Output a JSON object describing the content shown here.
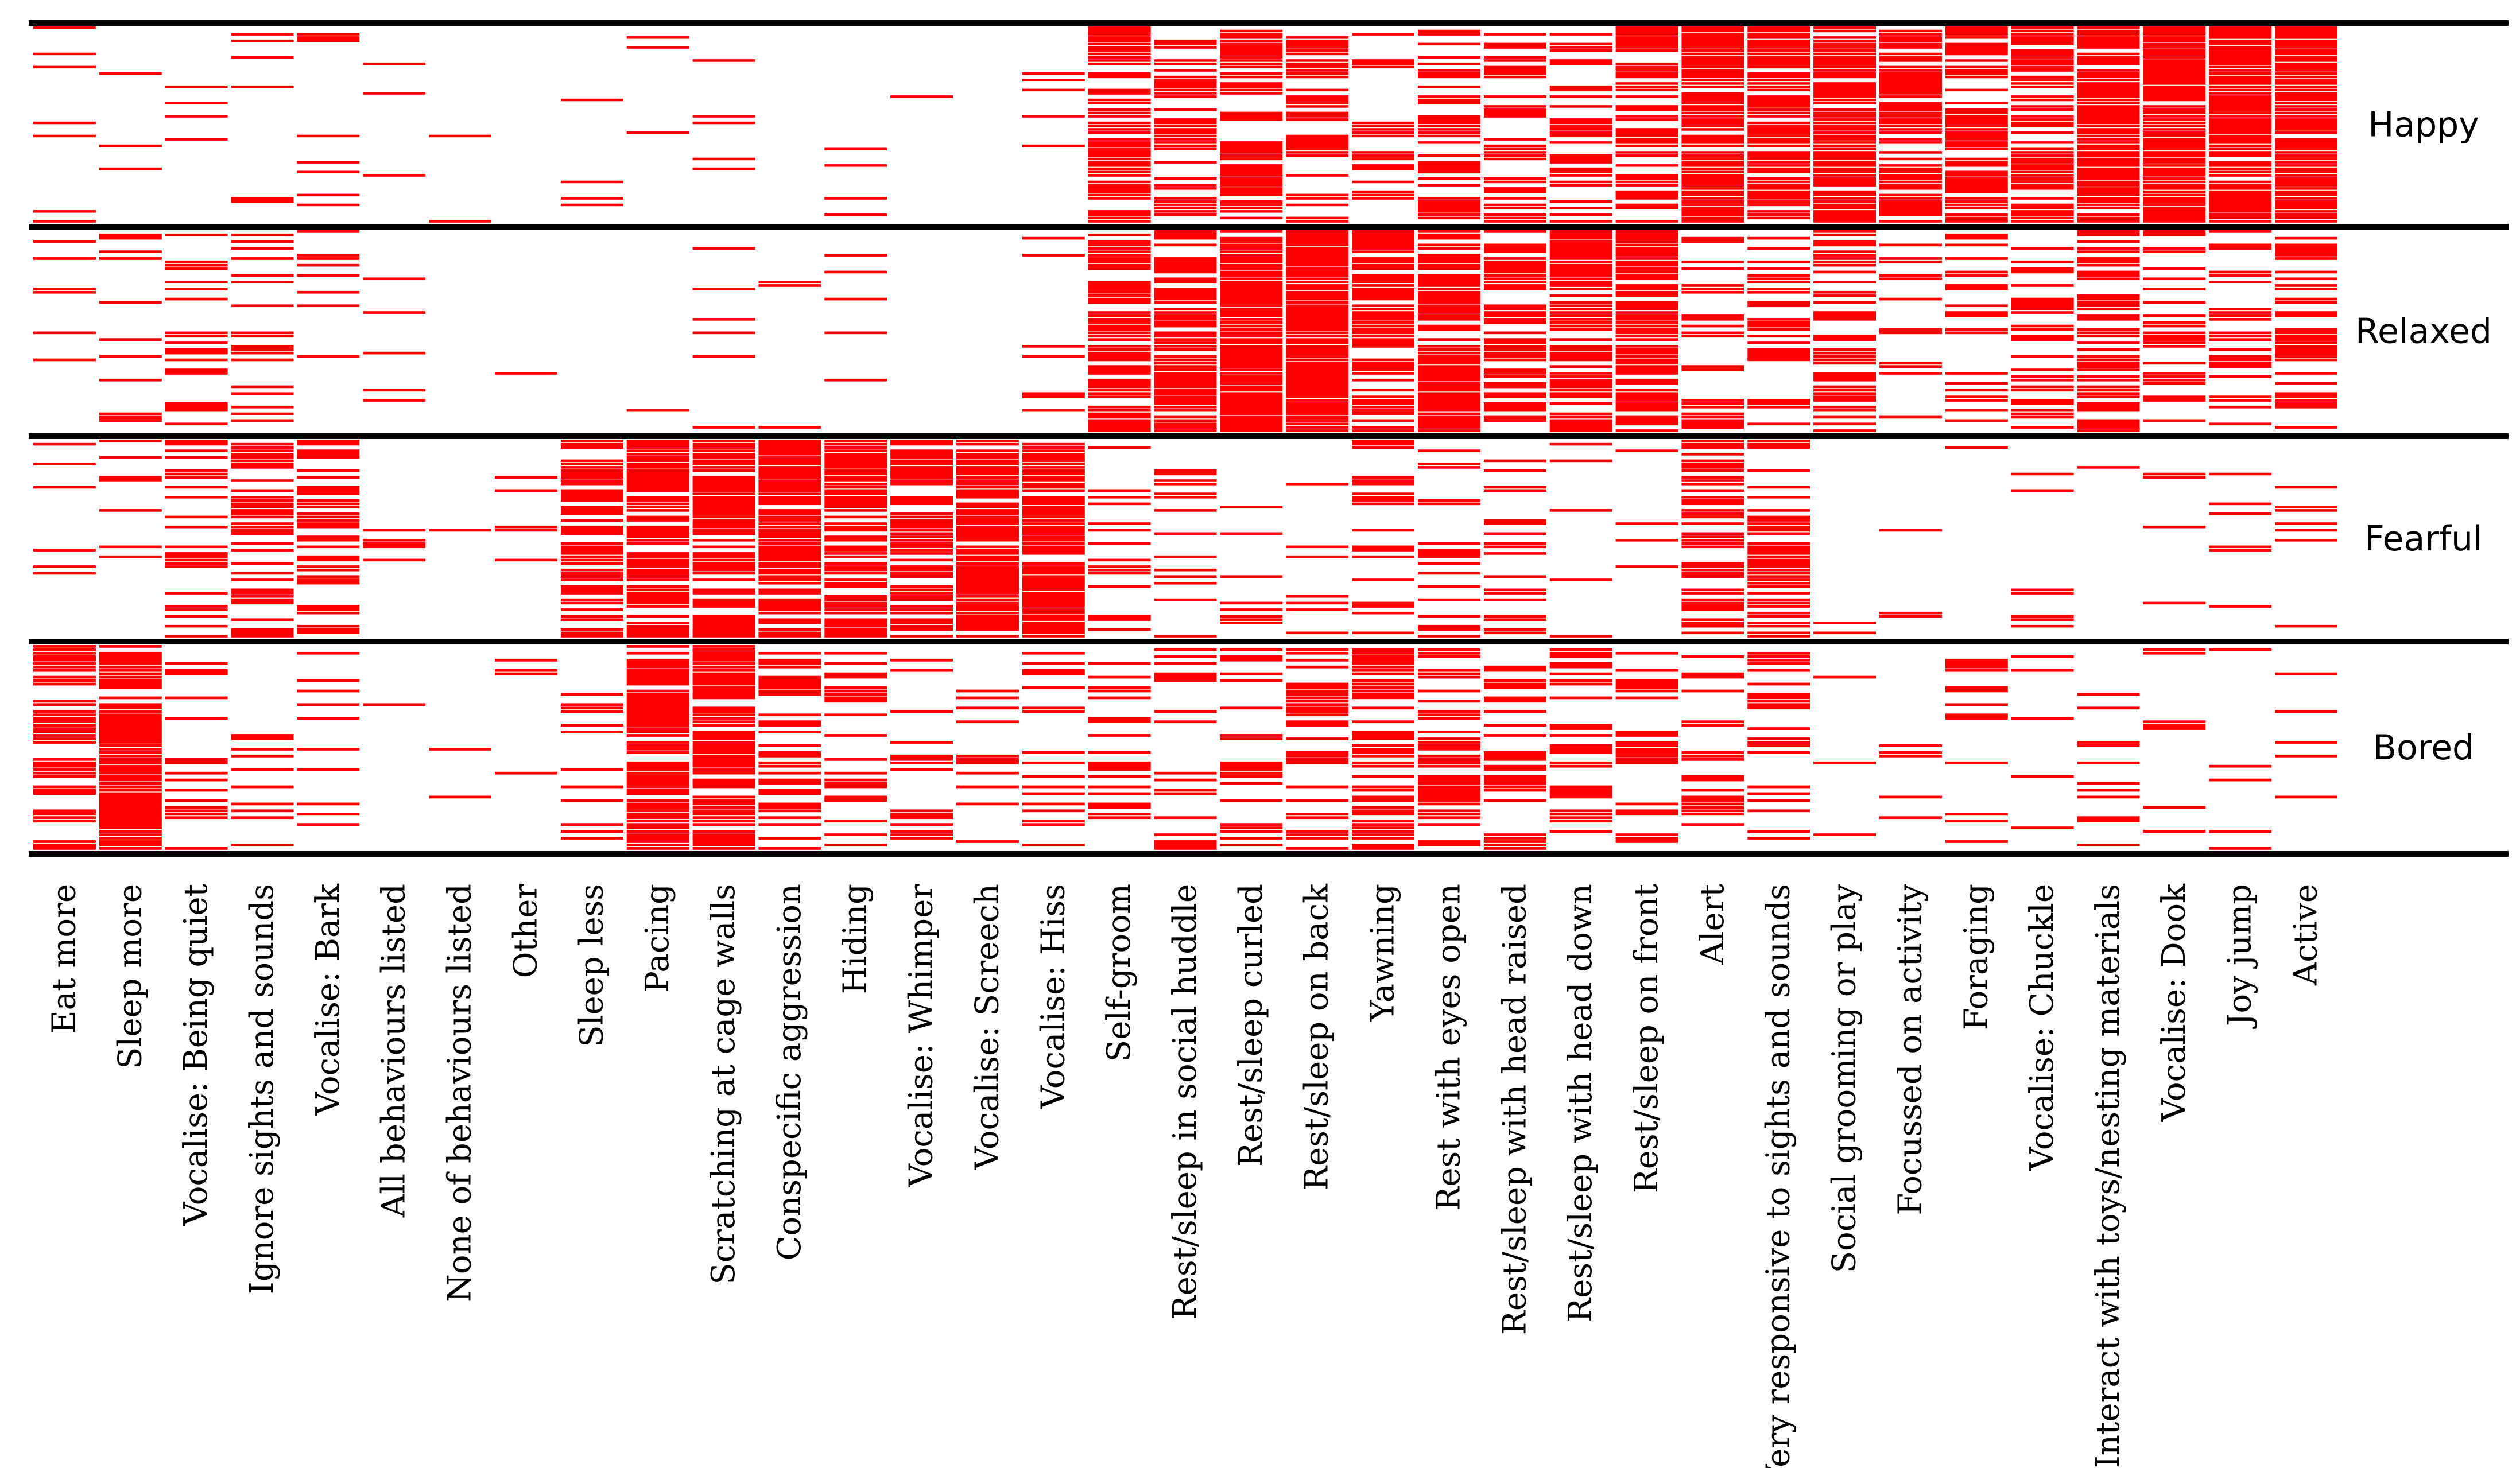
{
  "chart_data": {
    "type": "heatmap",
    "title": "",
    "xlabel": "",
    "ylabel": "",
    "grid": false,
    "legend": "none",
    "mark_color": "#ff0000",
    "line_color": "#000000",
    "categories": [
      "Eat more",
      "Sleep more",
      "Vocalise: Being quiet",
      "Ignore sights and sounds",
      "Vocalise: Bark",
      "All behaviours listed",
      "None of behaviours listed",
      "Other",
      "Sleep less",
      "Pacing",
      "Scratching at cage walls",
      "Conspecific aggression",
      "Hiding",
      "Vocalise: Whimper",
      "Vocalise: Screech",
      "Vocalise: Hiss",
      "Self-groom",
      "Rest/sleep in social huddle",
      "Rest/sleep curled",
      "Rest/sleep on back",
      "Yawning",
      "Rest with eyes open",
      "Rest/sleep with head raised",
      "Rest/sleep with head down",
      "Rest/sleep on front",
      "Alert",
      "Very responsive to sights and sounds",
      "Social grooming or play",
      "Focussed on activity",
      "Foraging",
      "Vocalise: Chuckle",
      "Interact with toys/nesting materials",
      "Vocalise: Dook",
      "Joy jump",
      "Active"
    ],
    "rows_per_panel": 60,
    "series": [
      {
        "name": "Happy",
        "density": [
          0.06,
          0.04,
          0.06,
          0.08,
          0.12,
          0.02,
          0.02,
          0.02,
          0.12,
          0.06,
          0.08,
          0.02,
          0.08,
          0.02,
          0.02,
          0.14,
          0.55,
          0.4,
          0.5,
          0.55,
          0.3,
          0.4,
          0.4,
          0.4,
          0.5,
          0.85,
          0.8,
          0.9,
          0.75,
          0.65,
          0.8,
          0.85,
          0.9,
          0.95,
          0.95
        ]
      },
      {
        "name": "Relaxed",
        "density": [
          0.08,
          0.15,
          0.3,
          0.2,
          0.1,
          0.02,
          0.02,
          0.02,
          0.02,
          0.02,
          0.05,
          0.02,
          0.05,
          0.02,
          0.02,
          0.1,
          0.75,
          0.8,
          0.85,
          0.9,
          0.7,
          0.75,
          0.5,
          0.75,
          0.8,
          0.3,
          0.35,
          0.55,
          0.35,
          0.4,
          0.4,
          0.55,
          0.35,
          0.35,
          0.4
        ]
      },
      {
        "name": "Fearful",
        "density": [
          0.1,
          0.15,
          0.4,
          0.5,
          0.55,
          0.02,
          0.02,
          0.05,
          0.6,
          0.75,
          0.75,
          0.9,
          0.8,
          0.7,
          0.85,
          0.85,
          0.15,
          0.2,
          0.15,
          0.1,
          0.2,
          0.3,
          0.15,
          0.1,
          0.15,
          0.55,
          0.45,
          0.02,
          0.05,
          0.02,
          0.08,
          0.02,
          0.05,
          0.05,
          0.05
        ]
      },
      {
        "name": "Bored",
        "density": [
          0.6,
          0.8,
          0.2,
          0.2,
          0.15,
          0.02,
          0.02,
          0.05,
          0.2,
          0.8,
          0.85,
          0.4,
          0.3,
          0.2,
          0.15,
          0.2,
          0.3,
          0.3,
          0.35,
          0.4,
          0.55,
          0.45,
          0.3,
          0.4,
          0.3,
          0.3,
          0.3,
          0.05,
          0.05,
          0.2,
          0.15,
          0.15,
          0.08,
          0.02,
          0.1
        ]
      }
    ]
  }
}
